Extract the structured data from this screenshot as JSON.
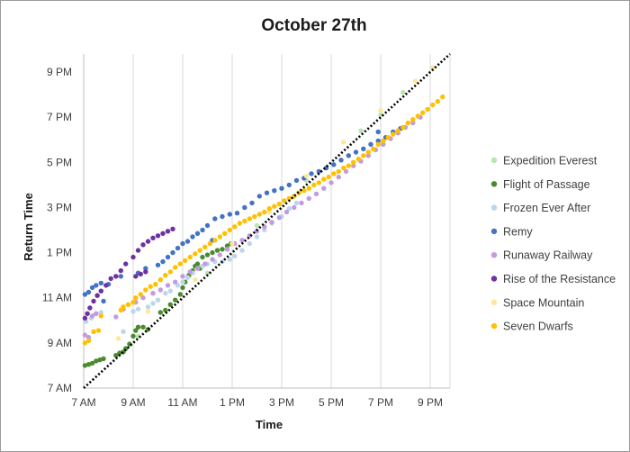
{
  "chart_data": {
    "type": "scatter",
    "title": "October 27th",
    "xlabel": "Time",
    "ylabel": "Return Time",
    "x_ticks": [
      {
        "value": 7,
        "label": "7 AM"
      },
      {
        "value": 9,
        "label": "9 AM"
      },
      {
        "value": 11,
        "label": "11 AM"
      },
      {
        "value": 13,
        "label": "1 PM"
      },
      {
        "value": 15,
        "label": "3 PM"
      },
      {
        "value": 17,
        "label": "5 PM"
      },
      {
        "value": 19,
        "label": "7 PM"
      },
      {
        "value": 21,
        "label": "9 PM"
      }
    ],
    "y_ticks": [
      {
        "value": 7,
        "label": "7 AM"
      },
      {
        "value": 9,
        "label": "9 AM"
      },
      {
        "value": 11,
        "label": "11 AM"
      },
      {
        "value": 13,
        "label": "1 PM"
      },
      {
        "value": 15,
        "label": "3 PM"
      },
      {
        "value": 17,
        "label": "5 PM"
      },
      {
        "value": 19,
        "label": "7 PM"
      },
      {
        "value": 21,
        "label": "9 PM"
      }
    ],
    "xlim": [
      7,
      21.8
    ],
    "ylim": [
      7,
      21.8
    ],
    "grid": "vertical",
    "legend_position": "right",
    "reference_line": "y = x (dotted)",
    "series": [
      {
        "name": "Expedition Everest",
        "color": "#b8e6b0",
        "points": [
          [
            9.2,
            9.3
          ],
          [
            10.5,
            10.7
          ],
          [
            12,
            12.1
          ],
          [
            14,
            14.2
          ],
          [
            16,
            16.2
          ],
          [
            18.2,
            18.4
          ],
          [
            19,
            19.1
          ],
          [
            19.9,
            20.1
          ]
        ]
      },
      {
        "name": "Flight of Passage",
        "color": "#4c8a2e",
        "points": [
          [
            7.05,
            8.0
          ],
          [
            7.2,
            8.05
          ],
          [
            7.35,
            8.1
          ],
          [
            7.5,
            8.2
          ],
          [
            7.65,
            8.25
          ],
          [
            7.8,
            8.3
          ],
          [
            8.3,
            8.45
          ],
          [
            8.45,
            8.55
          ],
          [
            8.6,
            8.6
          ],
          [
            8.7,
            8.75
          ],
          [
            8.85,
            8.95
          ],
          [
            9.0,
            9.3
          ],
          [
            9.1,
            9.55
          ],
          [
            9.2,
            9.7
          ],
          [
            9.4,
            9.7
          ],
          [
            9.6,
            9.6
          ],
          [
            10.1,
            10.35
          ],
          [
            10.3,
            10.45
          ],
          [
            10.5,
            10.7
          ],
          [
            10.7,
            10.9
          ],
          [
            10.9,
            11.15
          ],
          [
            11.0,
            11.45
          ],
          [
            11.1,
            11.7
          ],
          [
            11.25,
            12.0
          ],
          [
            11.4,
            12.2
          ],
          [
            11.6,
            12.5
          ],
          [
            11.8,
            12.8
          ],
          [
            12.0,
            12.9
          ],
          [
            12.2,
            13.0
          ],
          [
            12.4,
            13.1
          ],
          [
            12.6,
            13.15
          ],
          [
            12.8,
            13.3
          ],
          [
            12.95,
            13.4
          ],
          [
            11.5,
            12.4
          ],
          [
            11.7,
            12.3
          ]
        ]
      },
      {
        "name": "Frozen Ever After",
        "color": "#bcd6ec",
        "points": [
          [
            7.1,
            9.95
          ],
          [
            7.3,
            10.1
          ],
          [
            7.5,
            10.3
          ],
          [
            7.7,
            10.35
          ],
          [
            8.6,
            9.5
          ],
          [
            9.0,
            10.4
          ],
          [
            9.2,
            10.5
          ],
          [
            9.6,
            10.6
          ],
          [
            9.8,
            10.75
          ],
          [
            10.0,
            10.9
          ],
          [
            10.3,
            11.2
          ],
          [
            10.5,
            11.3
          ],
          [
            10.8,
            11.55
          ],
          [
            11.0,
            11.7
          ],
          [
            11.2,
            11.9
          ],
          [
            11.4,
            12.1
          ],
          [
            11.6,
            12.3
          ],
          [
            11.8,
            12.4
          ],
          [
            12.0,
            12.5
          ],
          [
            12.3,
            12.6
          ],
          [
            12.6,
            12.6
          ],
          [
            12.9,
            12.7
          ],
          [
            13.1,
            12.85
          ],
          [
            13.4,
            13.1
          ],
          [
            13.7,
            13.4
          ],
          [
            14.0,
            13.7
          ],
          [
            14.3,
            14.0
          ],
          [
            14.6,
            14.3
          ],
          [
            15.0,
            14.6
          ],
          [
            15.3,
            14.95
          ],
          [
            15.6,
            15.2
          ]
        ]
      },
      {
        "name": "Remy",
        "color": "#4472c4",
        "points": [
          [
            7.05,
            11.15
          ],
          [
            7.2,
            11.25
          ],
          [
            7.35,
            11.45
          ],
          [
            7.5,
            11.55
          ],
          [
            7.7,
            11.65
          ],
          [
            8.0,
            11.6
          ],
          [
            7.8,
            10.85
          ],
          [
            8.5,
            11.95
          ],
          [
            9.2,
            12.1
          ],
          [
            9.5,
            12.3
          ],
          [
            10.0,
            12.45
          ],
          [
            10.2,
            12.6
          ],
          [
            10.4,
            12.8
          ],
          [
            10.6,
            13.0
          ],
          [
            10.8,
            13.2
          ],
          [
            11.0,
            13.4
          ],
          [
            11.2,
            13.5
          ],
          [
            11.4,
            13.7
          ],
          [
            11.6,
            13.85
          ],
          [
            11.8,
            14.0
          ],
          [
            12.0,
            14.2
          ],
          [
            12.3,
            14.5
          ],
          [
            12.6,
            14.6
          ],
          [
            12.9,
            14.7
          ],
          [
            13.2,
            14.75
          ],
          [
            13.5,
            15.0
          ],
          [
            13.8,
            15.2
          ],
          [
            14.1,
            15.5
          ],
          [
            14.4,
            15.65
          ],
          [
            14.7,
            15.75
          ],
          [
            15.0,
            15.85
          ],
          [
            15.3,
            16.0
          ],
          [
            15.6,
            16.2
          ],
          [
            15.9,
            16.3
          ],
          [
            16.2,
            16.5
          ],
          [
            16.5,
            16.6
          ],
          [
            16.8,
            16.75
          ],
          [
            17.1,
            16.9
          ],
          [
            17.4,
            17.1
          ],
          [
            17.7,
            17.3
          ],
          [
            18.0,
            17.45
          ],
          [
            18.3,
            17.6
          ],
          [
            18.6,
            17.8
          ],
          [
            18.9,
            17.95
          ],
          [
            19.2,
            18.1
          ],
          [
            19.5,
            18.35
          ],
          [
            19.8,
            18.5
          ],
          [
            18.9,
            18.35
          ],
          [
            12.2,
            13.55
          ]
        ]
      },
      {
        "name": "Runaway Railway",
        "color": "#c39be0",
        "points": [
          [
            7.05,
            9.35
          ],
          [
            7.2,
            9.25
          ],
          [
            7.35,
            10.2
          ],
          [
            7.5,
            10.3
          ],
          [
            8.3,
            10.15
          ],
          [
            8.6,
            10.5
          ],
          [
            9.1,
            10.8
          ],
          [
            9.4,
            11.0
          ],
          [
            9.8,
            11.2
          ],
          [
            10.1,
            11.35
          ],
          [
            10.4,
            11.55
          ],
          [
            10.7,
            11.7
          ],
          [
            11.0,
            11.95
          ],
          [
            11.3,
            12.15
          ],
          [
            11.6,
            12.3
          ],
          [
            11.9,
            12.5
          ],
          [
            12.2,
            12.7
          ],
          [
            12.5,
            12.9
          ],
          [
            12.8,
            13.15
          ],
          [
            13.1,
            13.4
          ],
          [
            13.4,
            13.55
          ],
          [
            13.7,
            13.75
          ],
          [
            14.0,
            13.95
          ],
          [
            14.3,
            14.15
          ],
          [
            14.6,
            14.35
          ],
          [
            14.9,
            14.55
          ],
          [
            15.2,
            14.8
          ],
          [
            15.5,
            15.0
          ],
          [
            15.8,
            15.2
          ],
          [
            16.1,
            15.4
          ],
          [
            16.4,
            15.6
          ],
          [
            16.7,
            15.85
          ],
          [
            17.0,
            16.1
          ],
          [
            17.3,
            16.35
          ],
          [
            17.6,
            16.6
          ],
          [
            17.9,
            16.85
          ],
          [
            18.2,
            17.05
          ],
          [
            18.5,
            17.3
          ],
          [
            18.8,
            17.55
          ],
          [
            19.1,
            17.8
          ],
          [
            19.4,
            18.05
          ],
          [
            19.7,
            18.3
          ],
          [
            20.0,
            18.55
          ],
          [
            20.3,
            18.75
          ],
          [
            20.6,
            19.0
          ]
        ]
      },
      {
        "name": "Rise of the Resistance",
        "color": "#7030a0",
        "points": [
          [
            7.05,
            10.1
          ],
          [
            7.15,
            10.3
          ],
          [
            7.25,
            10.55
          ],
          [
            7.4,
            10.85
          ],
          [
            7.55,
            11.1
          ],
          [
            7.7,
            11.3
          ],
          [
            7.9,
            11.55
          ],
          [
            8.1,
            11.85
          ],
          [
            8.3,
            11.95
          ],
          [
            8.5,
            12.2
          ],
          [
            8.7,
            12.5
          ],
          [
            9.0,
            12.8
          ],
          [
            9.2,
            13.1
          ],
          [
            9.4,
            13.35
          ],
          [
            9.6,
            13.5
          ],
          [
            9.8,
            13.65
          ],
          [
            10.0,
            13.75
          ],
          [
            10.2,
            13.85
          ],
          [
            10.4,
            13.95
          ],
          [
            10.6,
            14.05
          ],
          [
            9.1,
            11.95
          ],
          [
            9.3,
            12.05
          ],
          [
            9.5,
            12.15
          ]
        ]
      },
      {
        "name": "Space Mountain",
        "color": "#ffe699",
        "points": [
          [
            8.4,
            9.2
          ],
          [
            9.6,
            10.4
          ],
          [
            11.5,
            11.8
          ],
          [
            13.0,
            13.4
          ],
          [
            14.5,
            14.8
          ],
          [
            16.0,
            16.4
          ],
          [
            17.5,
            17.9
          ],
          [
            19.0,
            19.3
          ],
          [
            20.4,
            20.6
          ],
          [
            21.1,
            21.2
          ]
        ]
      },
      {
        "name": "Seven Dwarfs",
        "color": "#ffc000",
        "points": [
          [
            7.05,
            9.0
          ],
          [
            7.2,
            9.1
          ],
          [
            7.4,
            9.5
          ],
          [
            7.6,
            9.55
          ],
          [
            7.7,
            10.2
          ],
          [
            8.5,
            10.45
          ],
          [
            8.6,
            10.6
          ],
          [
            8.8,
            10.7
          ],
          [
            9.0,
            10.8
          ],
          [
            9.1,
            11.0
          ],
          [
            9.3,
            11.15
          ],
          [
            9.5,
            11.35
          ],
          [
            9.7,
            11.5
          ],
          [
            9.9,
            11.6
          ],
          [
            10.1,
            11.8
          ],
          [
            10.3,
            12.0
          ],
          [
            10.5,
            12.15
          ],
          [
            10.7,
            12.35
          ],
          [
            10.9,
            12.5
          ],
          [
            11.1,
            12.65
          ],
          [
            11.3,
            12.8
          ],
          [
            11.5,
            12.95
          ],
          [
            11.7,
            13.1
          ],
          [
            11.9,
            13.25
          ],
          [
            12.1,
            13.4
          ],
          [
            12.3,
            13.55
          ],
          [
            12.5,
            13.7
          ],
          [
            12.7,
            13.85
          ],
          [
            12.9,
            14.0
          ],
          [
            13.1,
            14.15
          ],
          [
            13.3,
            14.3
          ],
          [
            13.5,
            14.4
          ],
          [
            13.7,
            14.5
          ],
          [
            13.9,
            14.6
          ],
          [
            14.1,
            14.7
          ],
          [
            14.3,
            14.8
          ],
          [
            14.5,
            14.95
          ],
          [
            14.7,
            15.05
          ],
          [
            14.9,
            15.15
          ],
          [
            15.1,
            15.3
          ],
          [
            15.3,
            15.4
          ],
          [
            15.5,
            15.5
          ],
          [
            15.7,
            15.65
          ],
          [
            15.9,
            15.75
          ],
          [
            16.1,
            15.85
          ],
          [
            16.3,
            16.0
          ],
          [
            16.5,
            16.1
          ],
          [
            16.7,
            16.25
          ],
          [
            16.9,
            16.35
          ],
          [
            17.1,
            16.5
          ],
          [
            17.3,
            16.6
          ],
          [
            17.5,
            16.75
          ],
          [
            17.7,
            16.85
          ],
          [
            17.9,
            17.0
          ],
          [
            18.1,
            17.15
          ],
          [
            18.3,
            17.3
          ],
          [
            18.5,
            17.45
          ],
          [
            18.7,
            17.6
          ],
          [
            18.9,
            17.8
          ],
          [
            19.1,
            17.95
          ],
          [
            19.3,
            18.1
          ],
          [
            19.5,
            18.25
          ],
          [
            19.7,
            18.4
          ],
          [
            19.9,
            18.55
          ],
          [
            20.1,
            18.75
          ],
          [
            20.3,
            18.9
          ],
          [
            20.5,
            19.05
          ],
          [
            20.7,
            19.2
          ],
          [
            20.9,
            19.35
          ],
          [
            21.1,
            19.55
          ],
          [
            21.3,
            19.7
          ],
          [
            21.5,
            19.9
          ]
        ]
      }
    ]
  }
}
